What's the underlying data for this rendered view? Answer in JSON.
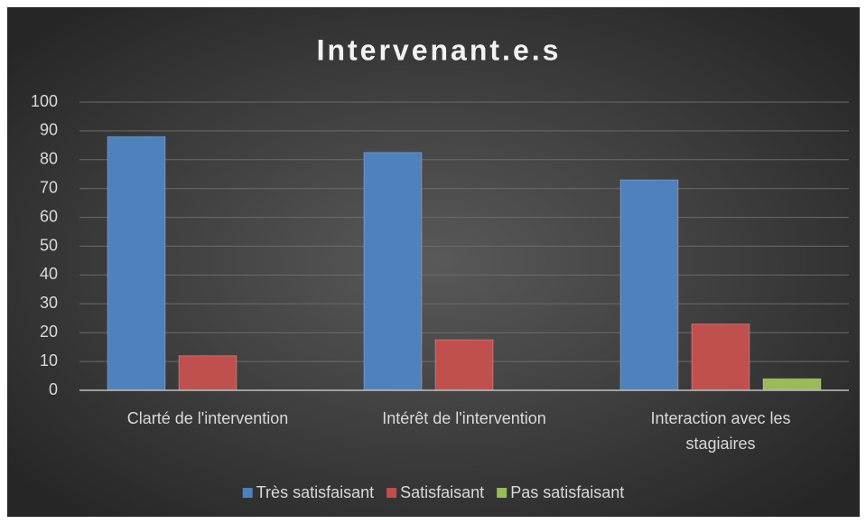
{
  "chart_data": {
    "type": "bar",
    "title": "Intervenant.e.s",
    "categories": [
      "Clarté de l'intervention",
      "Intérêt de l'intervention",
      "Interaction avec les stagiaires"
    ],
    "series": [
      {
        "name": "Très satisfaisant",
        "color": "#4f81bd",
        "values": [
          88,
          82.5,
          73
        ]
      },
      {
        "name": "Satisfaisant",
        "color": "#c0504d",
        "values": [
          12,
          17.5,
          23
        ]
      },
      {
        "name": "Pas satisfaisant",
        "color": "#9bbb59",
        "values": [
          0,
          0,
          4
        ]
      }
    ],
    "ylim": [
      0,
      100
    ],
    "yticks": [
      0,
      10,
      20,
      30,
      40,
      50,
      60,
      70,
      80,
      90,
      100
    ],
    "grid": true,
    "legend": "bottom"
  }
}
